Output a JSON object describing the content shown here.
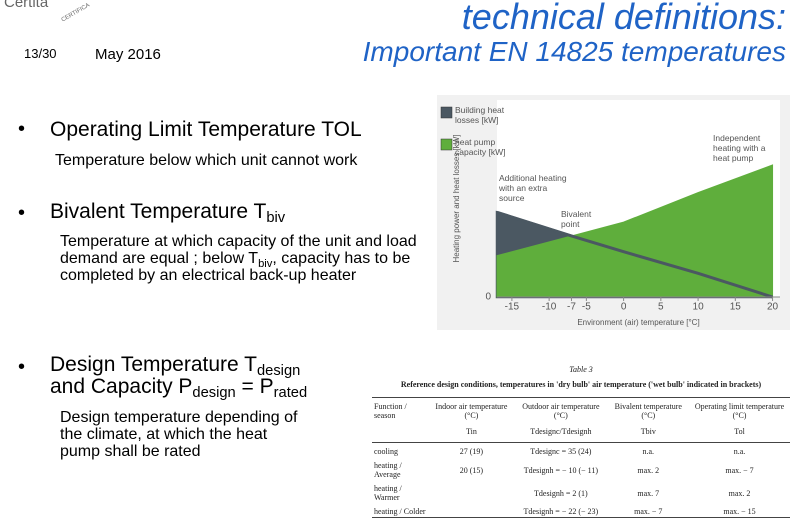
{
  "header": {
    "logo": "Certita",
    "logo_sub": "CERTIFICA",
    "page": "13/30",
    "date": "May 2016",
    "title_line1": "technical definitions:",
    "title_line2": "Important EN 14825 temperatures"
  },
  "bullets": [
    {
      "heading": "Operating Limit Temperature TOL",
      "body": "Temperature below which unit cannot work"
    },
    {
      "heading": [
        "Bivalent Temperature T",
        "biv"
      ],
      "body": [
        "Temperature at which capacity of the unit and load demand are equal ; below T",
        "biv",
        ", capacity has to be completed by an electrical back-up heater"
      ]
    },
    {
      "heading": [
        "Design Temperature T",
        "design",
        "and Capacity P",
        "design",
        " = P",
        "rated"
      ],
      "body": "Design temperature depending of the climate, at which the heat pump shall be rated"
    }
  ],
  "chart_data": {
    "type": "area",
    "x": [
      -17,
      -7,
      0,
      10,
      20
    ],
    "series": [
      {
        "name": "Building heat losses [kW]",
        "color": "#4b5862",
        "values": [
          43,
          31,
          23,
          12,
          0
        ]
      },
      {
        "name": "heat pump capacity [kW]",
        "color": "#5fae3c",
        "values": [
          21,
          31,
          38,
          53,
          67
        ]
      }
    ],
    "xlim": [
      -17,
      21
    ],
    "xticks": [
      -15,
      -10,
      -7,
      -5,
      0,
      5,
      10,
      15,
      20
    ],
    "ylim": [
      0,
      100
    ],
    "yticks": [
      0
    ],
    "xlabel": "Environment (air) temperature [°C]",
    "ylabel": "Heating power and heat losses [kW]",
    "annotations": [
      "Additional heating with an extra source",
      "Bivalent point",
      "Independent heating with a heat pump"
    ]
  },
  "table": {
    "number": "Table 3",
    "caption": "Reference design conditions, temperatures in 'dry bulb' air temperature ('wet bulb' indicated in brackets)",
    "columns": [
      "Function / season",
      "Indoor air temperature (°C)",
      "Outdoor air temperature (°C)",
      "Bivalent temperature (°C)",
      "Operating limit temperature (°C)"
    ],
    "symbols": [
      "Tin",
      "Tdesignc/Tdesignh",
      "Tbiv",
      "Tol"
    ],
    "rows": [
      [
        "cooling",
        "27 (19)",
        "Tdesignc = 35 (24)",
        "n.a.",
        "n.a."
      ],
      [
        "heating / Average",
        "20 (15)",
        "Tdesignh = − 10 (− 11)",
        "max. 2",
        "max. − 7"
      ],
      [
        "heating / Warmer",
        null,
        "Tdesignh = 2 (1)",
        "max. 7",
        "max. 2"
      ],
      [
        "heating / Colder",
        null,
        "Tdesignh = − 22 (− 23)",
        "max. − 7",
        "max. − 15"
      ]
    ]
  }
}
